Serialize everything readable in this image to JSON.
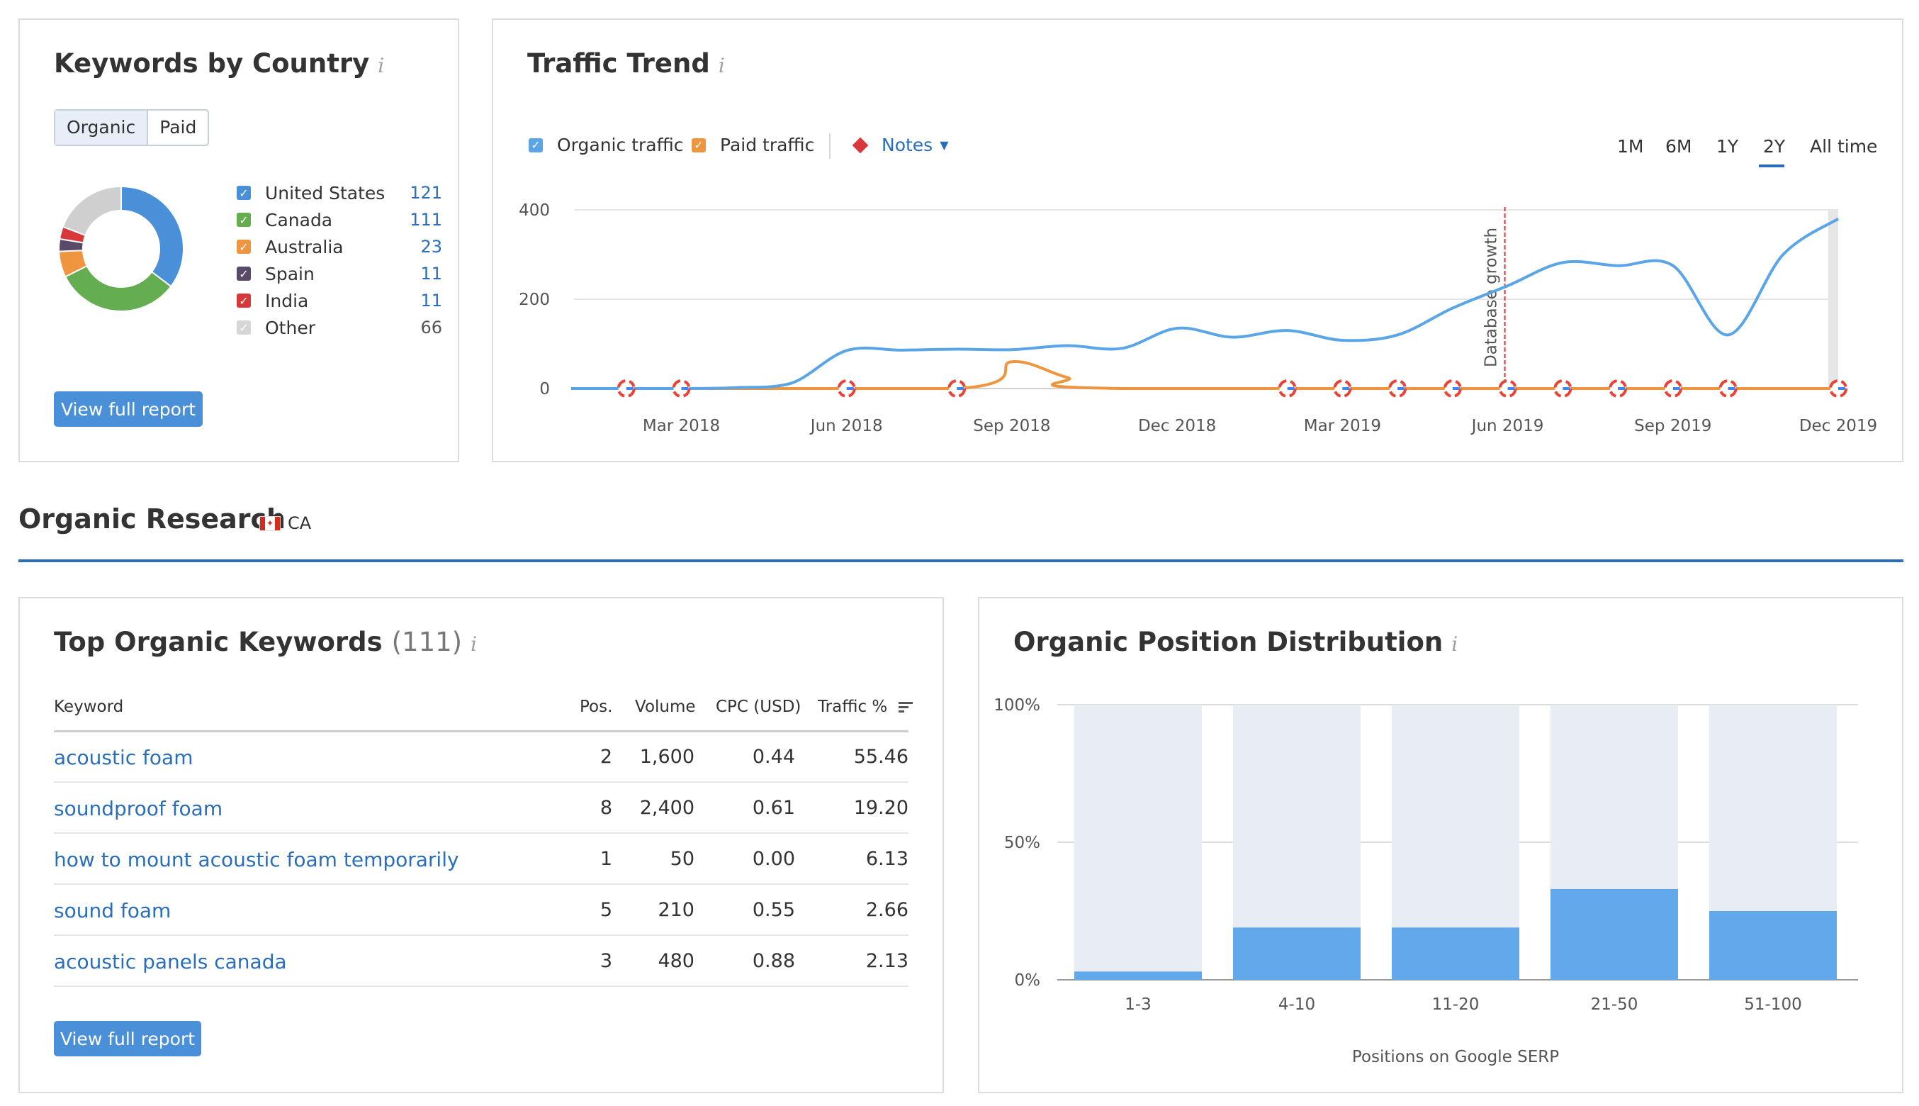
{
  "keywords_by_country": {
    "title": "Keywords by Country",
    "info_icon": "info-icon",
    "tabs": [
      {
        "label": "Organic",
        "active": true
      },
      {
        "label": "Paid",
        "active": false
      }
    ],
    "countries": [
      {
        "name": "United States",
        "count": "121",
        "color": "#4a90d9"
      },
      {
        "name": "Canada",
        "count": "111",
        "color": "#64ad51"
      },
      {
        "name": "Australia",
        "count": "23",
        "color": "#f0953f"
      },
      {
        "name": "Spain",
        "count": "11",
        "color": "#5a4a6a"
      },
      {
        "name": "India",
        "count": "11",
        "color": "#d9383a"
      },
      {
        "name": "Other",
        "count": "66",
        "color": "#cfcfcf"
      }
    ],
    "donut_values": [
      121,
      111,
      23,
      11,
      11,
      66
    ],
    "view_report_label": "View full report"
  },
  "traffic_trend": {
    "title": "Traffic Trend",
    "legend": {
      "organic_label": "Organic traffic",
      "organic_color": "#5aa5e8",
      "paid_label": "Paid traffic",
      "paid_color": "#f0953f",
      "notes_label": "Notes",
      "notes_color": "#d9383a"
    },
    "ranges": [
      "1M",
      "6M",
      "1Y",
      "2Y",
      "All time"
    ],
    "active_range": "2Y",
    "annotation": "Database growth",
    "chart_data": {
      "type": "line",
      "x_ticks": [
        "Mar 2018",
        "Jun 2018",
        "Sep 2018",
        "Dec 2018",
        "Mar 2019",
        "Jun 2019",
        "Sep 2019",
        "Dec 2019"
      ],
      "y_ticks": [
        "0",
        "200",
        "400"
      ],
      "ylim": [
        0,
        400
      ],
      "grid": true,
      "series": [
        {
          "name": "Organic traffic",
          "color": "#5aa5e8",
          "points": [
            [
              "2018-01",
              0
            ],
            [
              "2018-03",
              0
            ],
            [
              "2018-04",
              2
            ],
            [
              "2018-05",
              12
            ],
            [
              "2018-06",
              85
            ],
            [
              "2018-07",
              86
            ],
            [
              "2018-08",
              88
            ],
            [
              "2018-09",
              87
            ],
            [
              "2018-10",
              96
            ],
            [
              "2018-11",
              90
            ],
            [
              "2018-12",
              135
            ],
            [
              "2019-01",
              115
            ],
            [
              "2019-02",
              130
            ],
            [
              "2019-03",
              108
            ],
            [
              "2019-04",
              120
            ],
            [
              "2019-05",
              180
            ],
            [
              "2019-06",
              230
            ],
            [
              "2019-07",
              282
            ],
            [
              "2019-08",
              275
            ],
            [
              "2019-09",
              275
            ],
            [
              "2019-10",
              120
            ],
            [
              "2019-11",
              300
            ],
            [
              "2019-12",
              380
            ]
          ]
        },
        {
          "name": "Paid traffic",
          "color": "#f0953f",
          "points": [
            [
              "2018-01",
              0
            ],
            [
              "2018-08",
              0
            ],
            [
              "2018-09",
              60
            ],
            [
              "2018-10",
              25
            ],
            [
              "2018-11",
              0
            ],
            [
              "2019-12",
              0
            ]
          ]
        }
      ]
    }
  },
  "organic_research": {
    "title": "Organic Research",
    "country_code": "CA"
  },
  "top_keywords": {
    "title": "Top Organic Keywords",
    "count": "(111)",
    "columns": {
      "keyword": "Keyword",
      "pos": "Pos.",
      "volume": "Volume",
      "cpc": "CPC (USD)",
      "traffic": "Traffic %"
    },
    "rows": [
      {
        "keyword": "acoustic foam",
        "pos": "2",
        "volume": "1,600",
        "cpc": "0.44",
        "traffic": "55.46"
      },
      {
        "keyword": "soundproof foam",
        "pos": "8",
        "volume": "2,400",
        "cpc": "0.61",
        "traffic": "19.20"
      },
      {
        "keyword": "how to mount acoustic foam temporarily",
        "pos": "1",
        "volume": "50",
        "cpc": "0.00",
        "traffic": "6.13"
      },
      {
        "keyword": "sound foam",
        "pos": "5",
        "volume": "210",
        "cpc": "0.55",
        "traffic": "2.66"
      },
      {
        "keyword": "acoustic panels canada",
        "pos": "3",
        "volume": "480",
        "cpc": "0.88",
        "traffic": "2.13"
      }
    ],
    "view_report_label": "View full report"
  },
  "position_distribution": {
    "title": "Organic Position Distribution",
    "chart_data": {
      "type": "bar",
      "categories": [
        "1-3",
        "4-10",
        "11-20",
        "21-50",
        "51-100"
      ],
      "values": [
        3,
        19,
        19,
        33,
        25
      ],
      "y_ticks": [
        "0%",
        "50%",
        "100%"
      ],
      "ylim": [
        0,
        100
      ],
      "xlabel": "Positions on Google SERP",
      "bar_color": "#62a9ec",
      "track_color": "#e8ecf3"
    }
  }
}
